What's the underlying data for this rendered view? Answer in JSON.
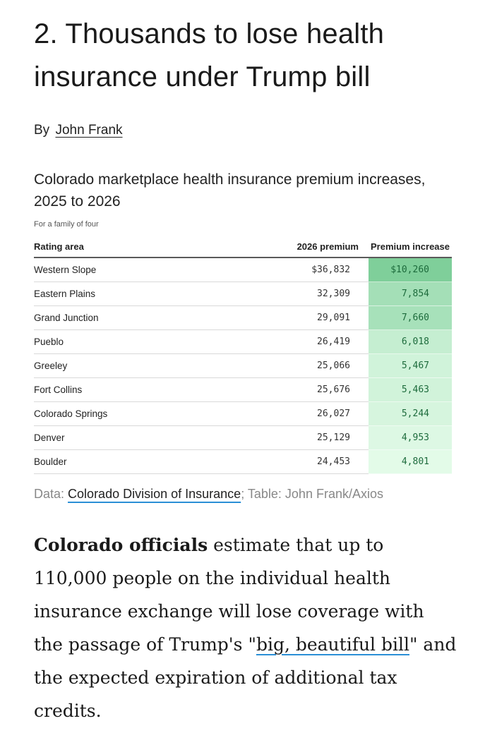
{
  "article": {
    "headline": "2. Thousands to lose health insurance under Trump bill",
    "byline_prefix": "By",
    "author": "John Frank"
  },
  "chart_data": {
    "type": "table",
    "title": "Colorado marketplace health insurance premium increases, 2025 to 2026",
    "subtitle": "For a family of four",
    "columns": [
      "Rating area",
      "2026 premium",
      "Premium increase"
    ],
    "rows": [
      {
        "area": "Western Slope",
        "premium": "$36,832",
        "increase": "$10,260",
        "increase_value": 10260
      },
      {
        "area": "Eastern Plains",
        "premium": "32,309",
        "increase": "7,854",
        "increase_value": 7854
      },
      {
        "area": "Grand Junction",
        "premium": "29,091",
        "increase": "7,660",
        "increase_value": 7660
      },
      {
        "area": "Pueblo",
        "premium": "26,419",
        "increase": "6,018",
        "increase_value": 6018
      },
      {
        "area": "Greeley",
        "premium": "25,066",
        "increase": "5,467",
        "increase_value": 5467
      },
      {
        "area": "Fort Collins",
        "premium": "25,676",
        "increase": "5,463",
        "increase_value": 5463
      },
      {
        "area": "Colorado Springs",
        "premium": "26,027",
        "increase": "5,244",
        "increase_value": 5244
      },
      {
        "area": "Denver",
        "premium": "25,129",
        "increase": "4,953",
        "increase_value": 4953
      },
      {
        "area": "Boulder",
        "premium": "24,453",
        "increase": "4,801",
        "increase_value": 4801
      }
    ],
    "heat_colors": {
      "low": "#e3fbe8",
      "high": "#7fcf9a"
    }
  },
  "source": {
    "data_label": "Data:",
    "data_link": "Colorado Division of Insurance",
    "separator": ";",
    "table_credit": "Table: John Frank/Axios"
  },
  "body": {
    "lead": "Colorado officials",
    "text_1": " estimate that up to 110,000 people on the individual health insurance exchange will lose coverage with the passage of Trump's \"",
    "link": "big, beautiful bill",
    "text_2": "\" and the expected expiration of additional tax credits."
  }
}
